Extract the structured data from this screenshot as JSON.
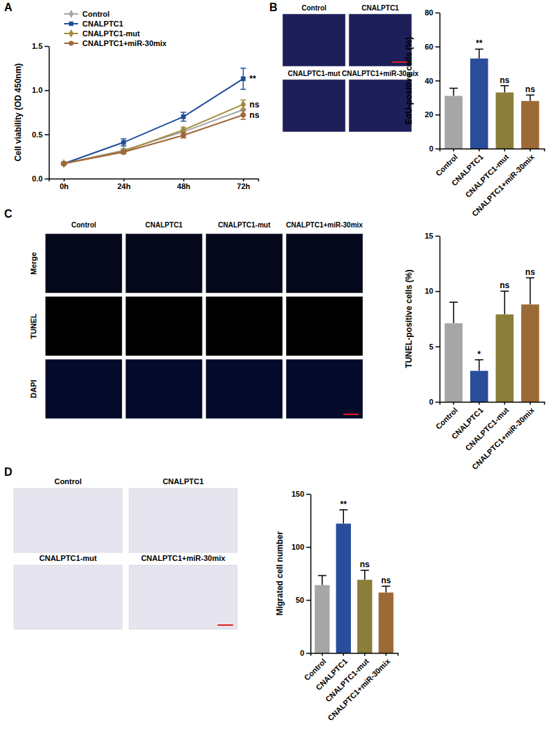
{
  "chart_data": [
    {
      "type": "line",
      "categories": [
        "0h",
        "24h",
        "48h",
        "72h"
      ],
      "ylabel": "Cell viability (OD 450nm)",
      "ylim": [
        0,
        1.5
      ],
      "yticks": [
        {
          "value": 0,
          "label": "0.0"
        },
        0.5,
        {
          "value": 1,
          "label": "1.0"
        },
        1.5
      ],
      "legend": "top-left",
      "series": [
        {
          "name": "Control",
          "color": "#a6a6a6",
          "marker": "diamond",
          "values": [
            0.17,
            0.32,
            0.53,
            0.78
          ],
          "errors": [
            0.01,
            0.02,
            0.03,
            0.05
          ]
        },
        {
          "name": "CNALPTC1",
          "color": "#1f4e9a",
          "marker": "square",
          "values": [
            0.17,
            0.41,
            0.7,
            1.13
          ],
          "errors": [
            0.01,
            0.04,
            0.05,
            0.12
          ],
          "significance": "**"
        },
        {
          "name": "CNALPTC1-mut",
          "color": "#a08a3c",
          "marker": "diamond",
          "values": [
            0.17,
            0.31,
            0.55,
            0.84
          ],
          "errors": [
            0.01,
            0.02,
            0.03,
            0.05
          ],
          "significance": "ns"
        },
        {
          "name": "CNALPTC1+miR-30mix",
          "color": "#a0683a",
          "marker": "circle",
          "values": [
            0.17,
            0.3,
            0.49,
            0.72
          ],
          "errors": [
            0.01,
            0.02,
            0.03,
            0.05
          ],
          "significance": "ns"
        }
      ]
    },
    {
      "type": "bar",
      "categories": [
        "Control",
        "CNALPTC1",
        "CNALPTC1-mut",
        "CNALPTC1+miR-30mix"
      ],
      "ylabel": "EdU-positive cells (%)",
      "ylim": [
        0,
        80
      ],
      "yticks": [
        0,
        20,
        40,
        60,
        80
      ],
      "values": [
        31,
        53,
        33,
        28
      ],
      "errors": [
        4.5,
        5.5,
        4,
        3.5
      ],
      "colors": [
        "#a6a6a6",
        "#2a4d9b",
        "#8b7d3a",
        "#9c6a36"
      ],
      "significance": [
        null,
        "**",
        "ns",
        "ns"
      ]
    },
    {
      "type": "bar",
      "categories": [
        "Control",
        "CNALPTC1",
        "CNALPTC1-mut",
        "CNALPTC1+miR-30mix"
      ],
      "ylabel": "TUNEL-positive cells (%)",
      "ylim": [
        0,
        15
      ],
      "yticks": [
        0,
        5,
        10,
        15
      ],
      "values": [
        7.1,
        2.8,
        7.9,
        8.8
      ],
      "errors": [
        1.9,
        1.0,
        2.1,
        2.4
      ],
      "colors": [
        "#a6a6a6",
        "#2a4d9b",
        "#8b7d3a",
        "#9c6a36"
      ],
      "significance": [
        null,
        "*",
        "ns",
        "ns"
      ]
    },
    {
      "type": "bar",
      "categories": [
        "Control",
        "CNALPTC1",
        "CNALPTC1-mut",
        "CNALPTC1+miR-30mix"
      ],
      "ylabel": "Migrated cell number",
      "ylim": [
        0,
        150
      ],
      "yticks": [
        0,
        50,
        100,
        150
      ],
      "values": [
        64,
        122,
        69,
        57
      ],
      "errors": [
        9,
        13,
        9,
        6
      ],
      "colors": [
        "#a6a6a6",
        "#2a4d9b",
        "#8b7d3a",
        "#9c6a36"
      ],
      "significance": [
        null,
        "**",
        "ns",
        "ns"
      ]
    }
  ],
  "figure": {
    "panels": [
      {
        "label": "A"
      },
      {
        "label": "B",
        "image_labels": [
          "Control",
          "CNALPTC1",
          "CNALPTC1-mut",
          "CNALPTC1+miR-30mix"
        ]
      },
      {
        "label": "C",
        "image_labels": [
          "Control",
          "CNALPTC1",
          "CNALPTC1-mut",
          "CNALPTC1+miR-30mix"
        ],
        "row_labels": [
          "Merge",
          "TUNEL",
          "DAPI"
        ]
      },
      {
        "label": "D",
        "image_labels": [
          "Control",
          "CNALPTC1",
          "CNALPTC1-mut",
          "CNALPTC1+miR-30mix"
        ]
      }
    ]
  }
}
